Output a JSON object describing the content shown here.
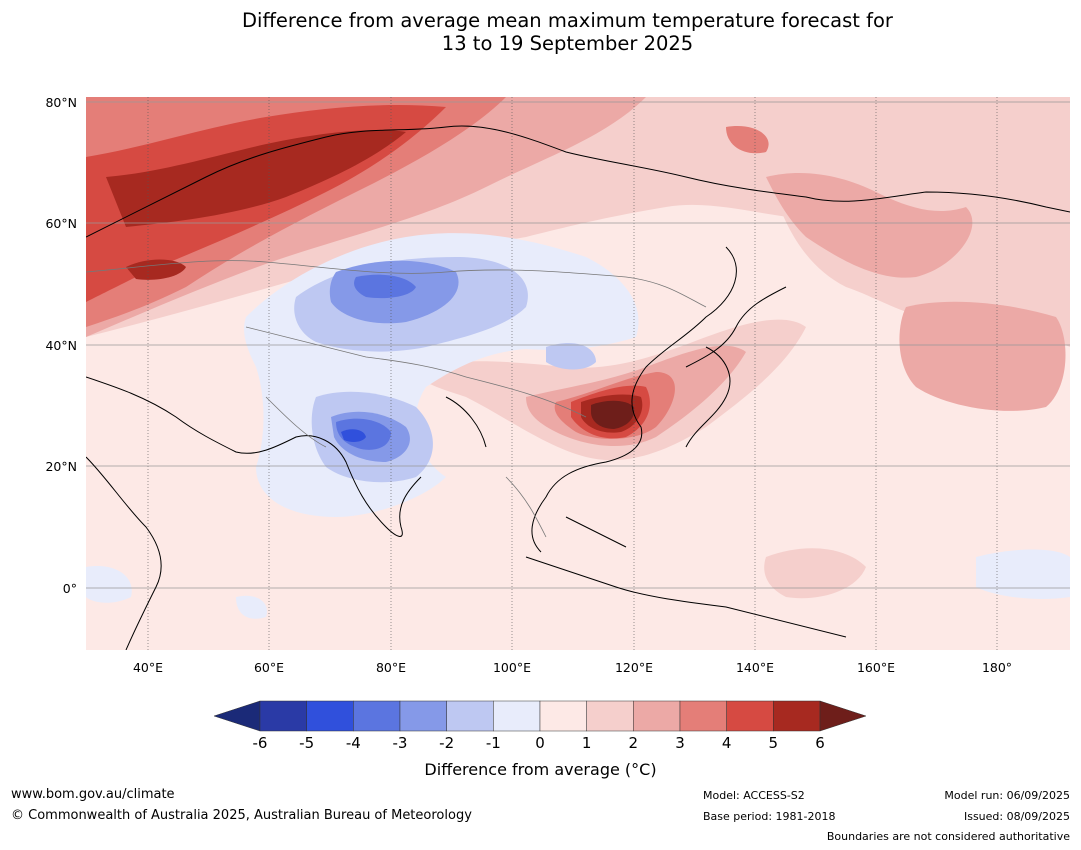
{
  "title": {
    "line1": "Difference from average mean maximum temperature forecast for",
    "line2": "13 to 19 September 2025"
  },
  "map": {
    "y_ticks": [
      "80°N",
      "60°N",
      "40°N",
      "20°N",
      "0°"
    ],
    "x_ticks": [
      "40°E",
      "60°E",
      "80°E",
      "100°E",
      "120°E",
      "140°E",
      "160°E",
      "180°"
    ],
    "gridlines": true
  },
  "colorbar": {
    "title": "Difference from average (°C)",
    "ticks": [
      "-6",
      "-5",
      "-4",
      "-3",
      "-2",
      "-1",
      "0",
      "1",
      "2",
      "3",
      "4",
      "5",
      "6"
    ],
    "colors": [
      "#2a3aa6",
      "#3050dc",
      "#5b75e0",
      "#8599e8",
      "#bec8f2",
      "#e8ecfb",
      "#fde9e6",
      "#f5cfcc",
      "#eca9a6",
      "#e47e78",
      "#d64a42",
      "#a72920"
    ],
    "under_color": "#1b2a78",
    "over_color": "#6e1e1a"
  },
  "footer": {
    "url": "www.bom.gov.au/climate",
    "copyright": "© Commonwealth of Australia 2025, Australian Bureau of Meteorology",
    "model": "Model: ACCESS-S2",
    "base_period": "Base period: 1981-2018",
    "model_run": "Model run: 06/09/2025",
    "issued": "Issued: 08/09/2025",
    "disclaimer": "Boundaries are not considered authoritative"
  }
}
